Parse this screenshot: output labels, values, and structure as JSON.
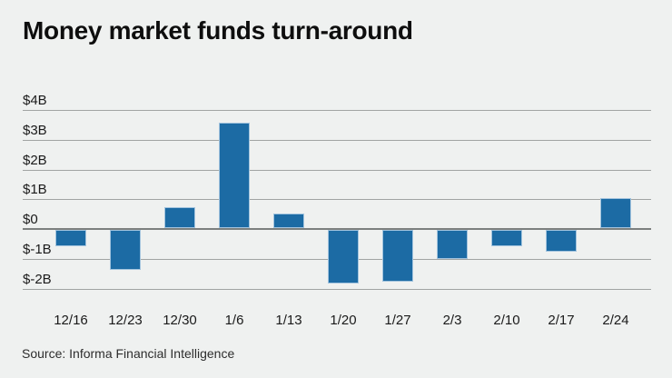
{
  "page": {
    "title": "Money market funds turn-around",
    "source": "Source: Informa Financial Intelligence"
  },
  "chart_data": {
    "type": "bar",
    "title": "Money market funds turn-around",
    "categories": [
      "12/16",
      "12/23",
      "12/30",
      "1/6",
      "1/13",
      "1/20",
      "1/27",
      "2/3",
      "2/10",
      "2/17",
      "2/24"
    ],
    "values": [
      -0.6,
      -1.4,
      0.7,
      3.55,
      0.5,
      -1.85,
      -1.8,
      -1.05,
      -0.6,
      -0.8,
      1.0
    ],
    "y_ticks": [
      {
        "label": "$4B",
        "value": 4
      },
      {
        "label": "$3B",
        "value": 3
      },
      {
        "label": "$2B",
        "value": 2
      },
      {
        "label": "$1B",
        "value": 1
      },
      {
        "label": "$0",
        "value": 0
      },
      {
        "label": "$-1B",
        "value": -1
      },
      {
        "label": "$-2B",
        "value": -2
      }
    ],
    "ylim": [
      -2,
      4
    ],
    "grid": true,
    "legend": "none",
    "xlabel": "",
    "ylabel": "",
    "source": "Source: Informa Financial Intelligence"
  },
  "colors": {
    "background": "#EFF1F0",
    "bar_fill": "#1C6BA4",
    "bar_edge": "#A3C4DE",
    "gridline": "#A1A4A3",
    "zero_line": "#7C807F",
    "text": "#141414"
  }
}
